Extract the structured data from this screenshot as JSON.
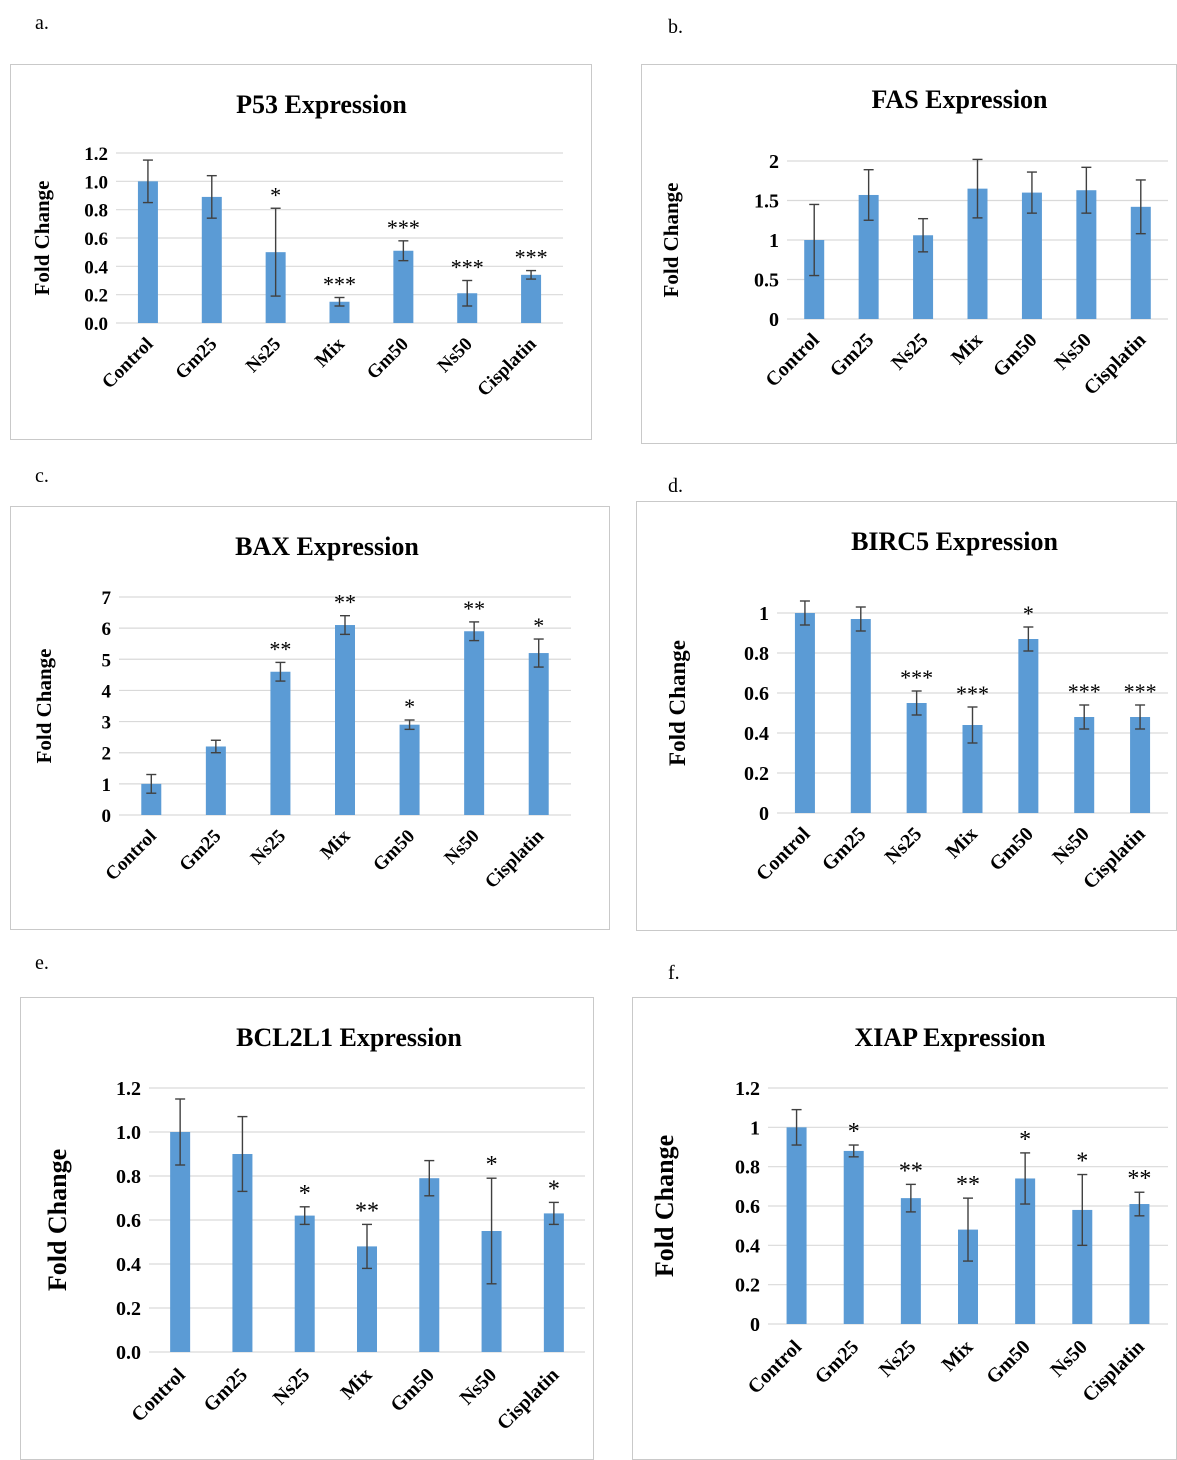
{
  "panels": [
    {
      "letter": "a."
    },
    {
      "letter": "b."
    },
    {
      "letter": "c."
    },
    {
      "letter": "d."
    },
    {
      "letter": "e."
    },
    {
      "letter": "f."
    }
  ],
  "colors": {
    "bar": "#5b9bd5",
    "grid": "#d9d9d9",
    "error": "#404040"
  },
  "chart_data": [
    {
      "type": "bar",
      "title": "P53 Expression",
      "ylabel": "Fold Change",
      "categories": [
        "Control",
        "Gm25",
        "Ns25",
        "Mix",
        "Gm50",
        "Ns50",
        "Cisplatin"
      ],
      "values": [
        1.0,
        0.89,
        0.5,
        0.15,
        0.51,
        0.21,
        0.34
      ],
      "errors": [
        0.15,
        0.15,
        0.31,
        0.03,
        0.07,
        0.09,
        0.03
      ],
      "significance": [
        "",
        "",
        "*",
        "***",
        "***",
        "***",
        "***"
      ],
      "ylim": [
        0,
        1.2
      ],
      "yticks": [
        "0.0",
        "0.2",
        "0.4",
        "0.6",
        "0.8",
        "1.0",
        "1.2"
      ],
      "grid": true,
      "legend": "none"
    },
    {
      "type": "bar",
      "title": "FAS Expression",
      "ylabel": "Fold Change",
      "categories": [
        "Control",
        "Gm25",
        "Ns25",
        "Mix",
        "Gm50",
        "Ns50",
        "Cisplatin"
      ],
      "values": [
        1.0,
        1.57,
        1.06,
        1.65,
        1.6,
        1.63,
        1.42
      ],
      "errors": [
        0.45,
        0.32,
        0.21,
        0.37,
        0.26,
        0.29,
        0.34
      ],
      "significance": [
        "",
        "",
        "",
        "",
        "",
        "",
        ""
      ],
      "ylim": [
        0,
        2
      ],
      "yticks": [
        "0",
        "0.5",
        "1",
        "1.5",
        "2"
      ],
      "grid": true,
      "legend": "none"
    },
    {
      "type": "bar",
      "title": "BAX Expression",
      "ylabel": "Fold Change",
      "categories": [
        "Control",
        "Gm25",
        "Ns25",
        "Mix",
        "Gm50",
        "Ns50",
        "Cisplatin"
      ],
      "values": [
        1.0,
        2.2,
        4.6,
        6.1,
        2.9,
        5.9,
        5.2
      ],
      "errors": [
        0.3,
        0.2,
        0.3,
        0.3,
        0.15,
        0.3,
        0.45
      ],
      "significance": [
        "",
        "",
        "**",
        "**",
        "*",
        "**",
        "*"
      ],
      "ylim": [
        0,
        7
      ],
      "yticks": [
        "0",
        "1",
        "2",
        "3",
        "4",
        "5",
        "6",
        "7"
      ],
      "grid": true,
      "legend": "none"
    },
    {
      "type": "bar",
      "title": "BIRC5 Expression",
      "ylabel": "Fold Change",
      "categories": [
        "Control",
        "Gm25",
        "Ns25",
        "Mix",
        "Gm50",
        "Ns50",
        "Cisplatin"
      ],
      "values": [
        1.0,
        0.97,
        0.55,
        0.44,
        0.87,
        0.48,
        0.48
      ],
      "errors": [
        0.06,
        0.06,
        0.06,
        0.09,
        0.06,
        0.06,
        0.06
      ],
      "significance": [
        "",
        "",
        "***",
        "***",
        "*",
        "***",
        "***"
      ],
      "ylim": [
        0,
        1.1
      ],
      "yticks": [
        "0",
        "0.2",
        "0.4",
        "0.6",
        "0.8",
        "1"
      ],
      "grid": true,
      "legend": "none"
    },
    {
      "type": "bar",
      "title": "BCL2L1 Expression",
      "ylabel": "Fold Change",
      "categories": [
        "Control",
        "Gm25",
        "Ns25",
        "Mix",
        "Gm50",
        "Ns50",
        "Cisplatin"
      ],
      "values": [
        1.0,
        0.9,
        0.62,
        0.48,
        0.79,
        0.55,
        0.63
      ],
      "errors": [
        0.15,
        0.17,
        0.04,
        0.1,
        0.08,
        0.24,
        0.05
      ],
      "significance": [
        "",
        "",
        "*",
        "**",
        "",
        "*",
        "*"
      ],
      "ylim": [
        0,
        1.2
      ],
      "yticks": [
        "0.0",
        "0.2",
        "0.4",
        "0.6",
        "0.8",
        "1.0",
        "1.2"
      ],
      "grid": true,
      "legend": "none"
    },
    {
      "type": "bar",
      "title": "XIAP Expression",
      "ylabel": "Fold Change",
      "categories": [
        "Control",
        "Gm25",
        "Ns25",
        "Mix",
        "Gm50",
        "Ns50",
        "Cisplatin"
      ],
      "values": [
        1.0,
        0.88,
        0.64,
        0.48,
        0.74,
        0.58,
        0.61
      ],
      "errors": [
        0.09,
        0.03,
        0.07,
        0.16,
        0.13,
        0.18,
        0.06
      ],
      "significance": [
        "",
        "*",
        "**",
        "**",
        "*",
        "*",
        "**"
      ],
      "ylim": [
        0,
        1.2
      ],
      "yticks": [
        "0",
        "0.2",
        "0.4",
        "0.6",
        "0.8",
        "1",
        "1.2"
      ],
      "grid": true,
      "legend": "none"
    }
  ]
}
